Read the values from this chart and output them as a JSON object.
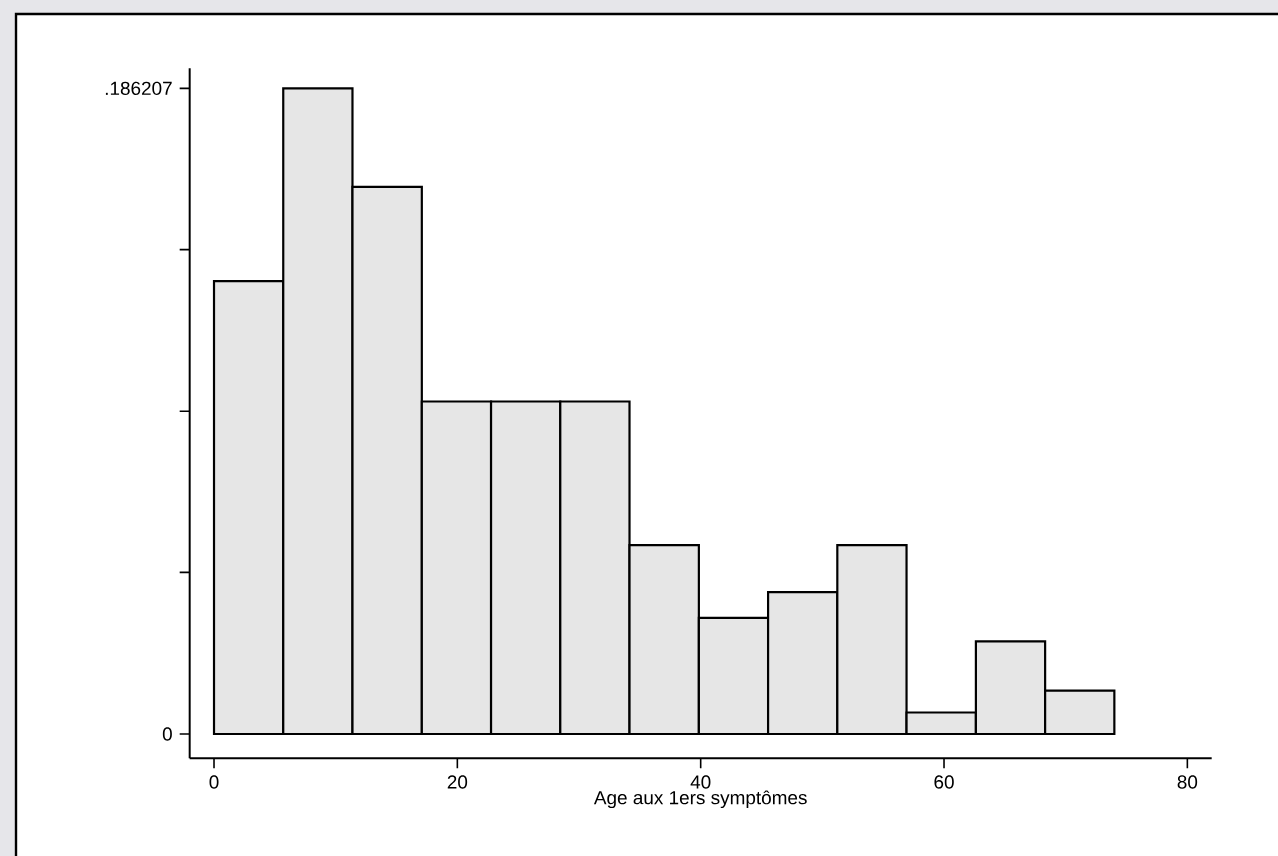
{
  "chart_data": {
    "type": "histogram",
    "xlabel": "Age aux 1ers symptômes",
    "bins": [
      0,
      5.69,
      11.38,
      17.08,
      22.77,
      28.46,
      34.15,
      39.85,
      45.54,
      51.23,
      56.92,
      62.62,
      68.31,
      74
    ],
    "values": [
      0.1306,
      0.1862,
      0.1578,
      0.0959,
      0.0959,
      0.0959,
      0.0545,
      0.0335,
      0.0409,
      0.0545,
      0.0062,
      0.0267,
      0.0125
    ],
    "color": "#e6e6e6",
    "xlim": [
      -2,
      82
    ],
    "ylim": [
      -0.007,
      0.192
    ],
    "xticks": [
      0,
      20,
      40,
      60,
      80
    ],
    "yticks": [
      0,
      {
        "value": 0.0466,
        "label": null
      },
      {
        "value": 0.0931,
        "label": null
      },
      {
        "value": 0.1397,
        "label": null
      },
      {
        "value": 0.186207,
        "label": ".186207"
      }
    ]
  }
}
